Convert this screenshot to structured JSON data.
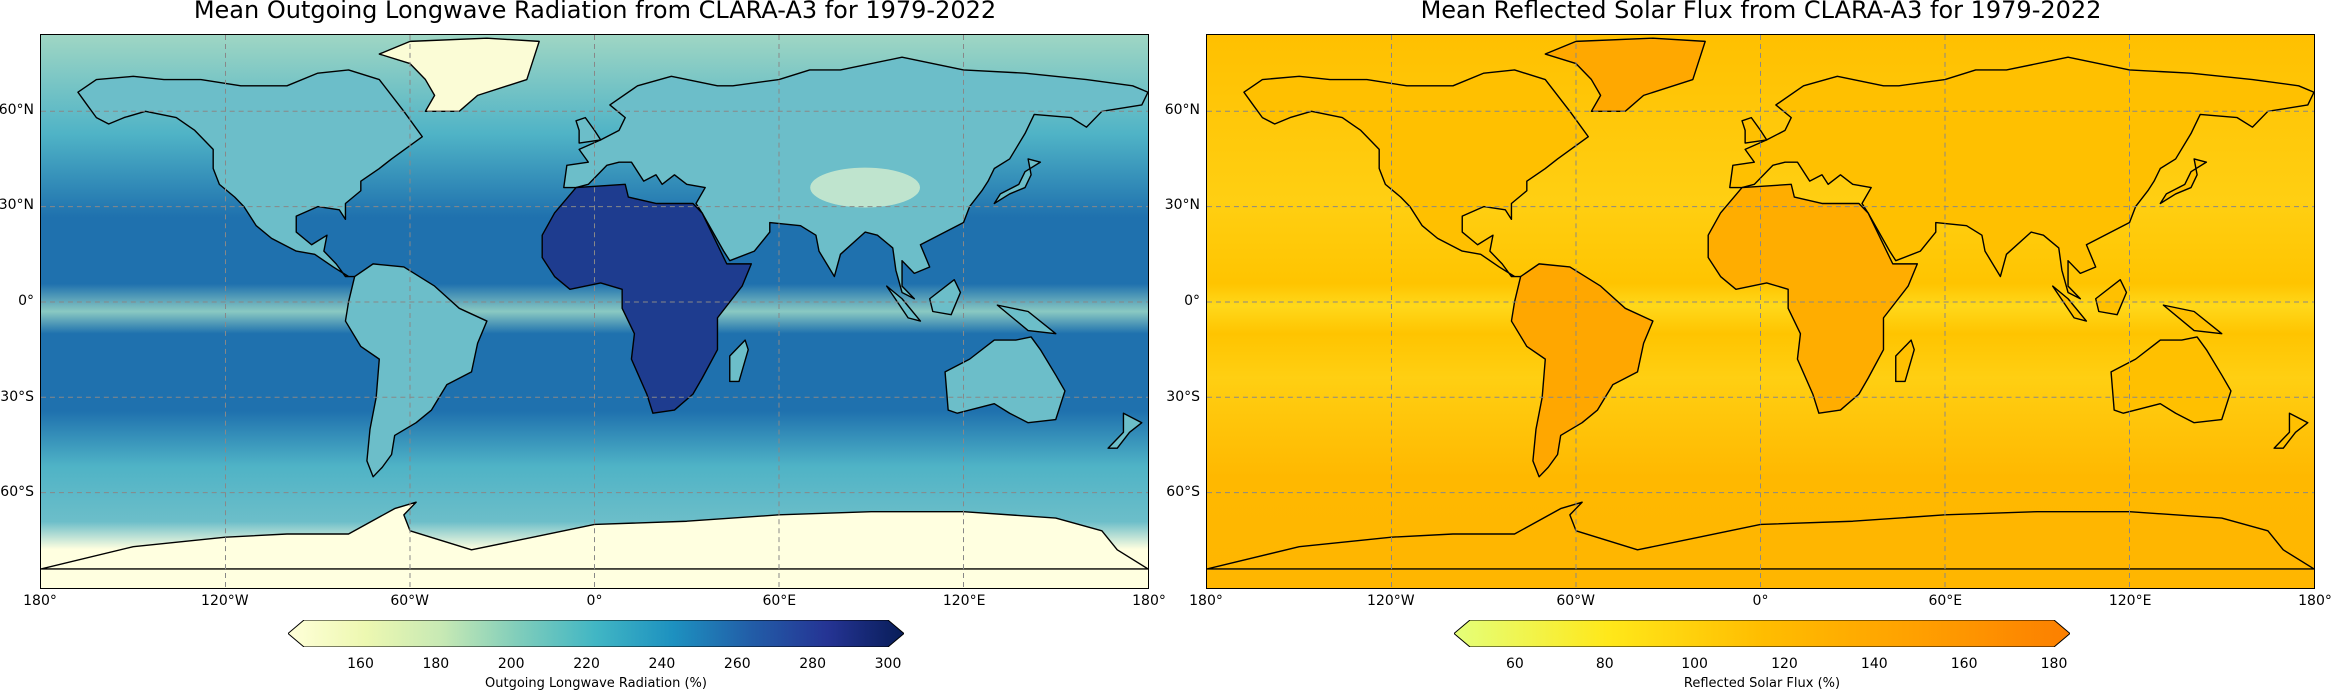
{
  "panels": [
    {
      "title": "Mean Outgoing Longwave Radiation from CLARA-A3 for 1979-2022",
      "colormap": "YlGnBu",
      "colorbar": {
        "label": "Outgoing Longwave Radiation (%)",
        "vmin": 145,
        "vmax": 300,
        "ticks": [
          "160",
          "180",
          "200",
          "220",
          "240",
          "260",
          "280",
          "300"
        ],
        "tick_values": [
          160,
          180,
          200,
          220,
          240,
          260,
          280,
          300
        ],
        "stops": [
          "#ffffd9",
          "#edf8b1",
          "#c7e9b4",
          "#7fcdbb",
          "#41b6c4",
          "#1d91c0",
          "#225ea8",
          "#253494",
          "#081d58"
        ],
        "extend": "both"
      },
      "field_colors": {
        "polar_north": "#9fd6c4",
        "mid_lat": "#4fb3c6",
        "subtropics": "#1f71ae",
        "itcz": "#8ac9c2",
        "antarctica": "#ffffe0",
        "land_tropics": "#6cbec9",
        "sahara": "#1e3c8f",
        "tibet": "#d5eecf",
        "greenland": "#fbfcd6"
      }
    },
    {
      "title": "Mean Reflected Solar Flux from CLARA-A3 for 1979-2022",
      "colormap": "Wistia",
      "colorbar": {
        "label": "Reflected Solar Flux (%)",
        "vmin": 50,
        "vmax": 180,
        "ticks": [
          "60",
          "80",
          "100",
          "120",
          "140",
          "160",
          "180"
        ],
        "tick_values": [
          60,
          80,
          100,
          120,
          140,
          160,
          180
        ],
        "stops": [
          "#e4ff7a",
          "#ffe81a",
          "#ffbd00",
          "#ffa000",
          "#fc7f00"
        ],
        "extend": "both"
      },
      "field_colors": {
        "ocean": "#ffc400",
        "itcz": "#ffd81a",
        "subtropics": "#ffcf12",
        "polar_north": "#ffc000",
        "southern_ocean": "#ffb800",
        "land": "#ffc000",
        "sahara": "#ffad00",
        "amazon": "#ffa700",
        "greenland": "#ffa800",
        "antarctica": "#ffb600"
      }
    }
  ],
  "lat_labels": [
    "60°N",
    "30°N",
    "0°",
    "30°S",
    "60°S"
  ],
  "lon_labels": [
    "180°",
    "120°W",
    "60°W",
    "0°",
    "60°E",
    "120°E",
    "180°"
  ]
}
